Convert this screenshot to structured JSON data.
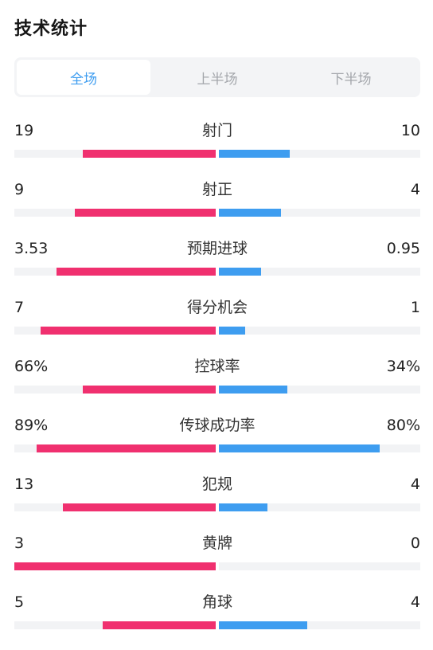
{
  "title": "技术统计",
  "tabs": [
    {
      "label": "全场",
      "active": true
    },
    {
      "label": "上半场",
      "active": false
    },
    {
      "label": "下半场",
      "active": false
    }
  ],
  "colors": {
    "home": "#f0306f",
    "away": "#3e9df0",
    "track": "#f2f3f5",
    "active_tab_text": "#3e9df0"
  },
  "stats": [
    {
      "label": "射门",
      "home": "19",
      "away": "10",
      "home_fill": 0.66,
      "away_fill": 0.35
    },
    {
      "label": "射正",
      "home": "9",
      "away": "4",
      "home_fill": 0.7,
      "away_fill": 0.31
    },
    {
      "label": "预期进球",
      "home": "3.53",
      "away": "0.95",
      "home_fill": 0.79,
      "away_fill": 0.21
    },
    {
      "label": "得分机会",
      "home": "7",
      "away": "1",
      "home_fill": 0.87,
      "away_fill": 0.13
    },
    {
      "label": "控球率",
      "home": "66%",
      "away": "34%",
      "home_fill": 0.66,
      "away_fill": 0.34
    },
    {
      "label": "传球成功率",
      "home": "89%",
      "away": "80%",
      "home_fill": 0.89,
      "away_fill": 0.8
    },
    {
      "label": "犯规",
      "home": "13",
      "away": "4",
      "home_fill": 0.76,
      "away_fill": 0.24
    },
    {
      "label": "黄牌",
      "home": "3",
      "away": "0",
      "home_fill": 1.0,
      "away_fill": 0.0
    },
    {
      "label": "角球",
      "home": "5",
      "away": "4",
      "home_fill": 0.56,
      "away_fill": 0.44
    }
  ]
}
